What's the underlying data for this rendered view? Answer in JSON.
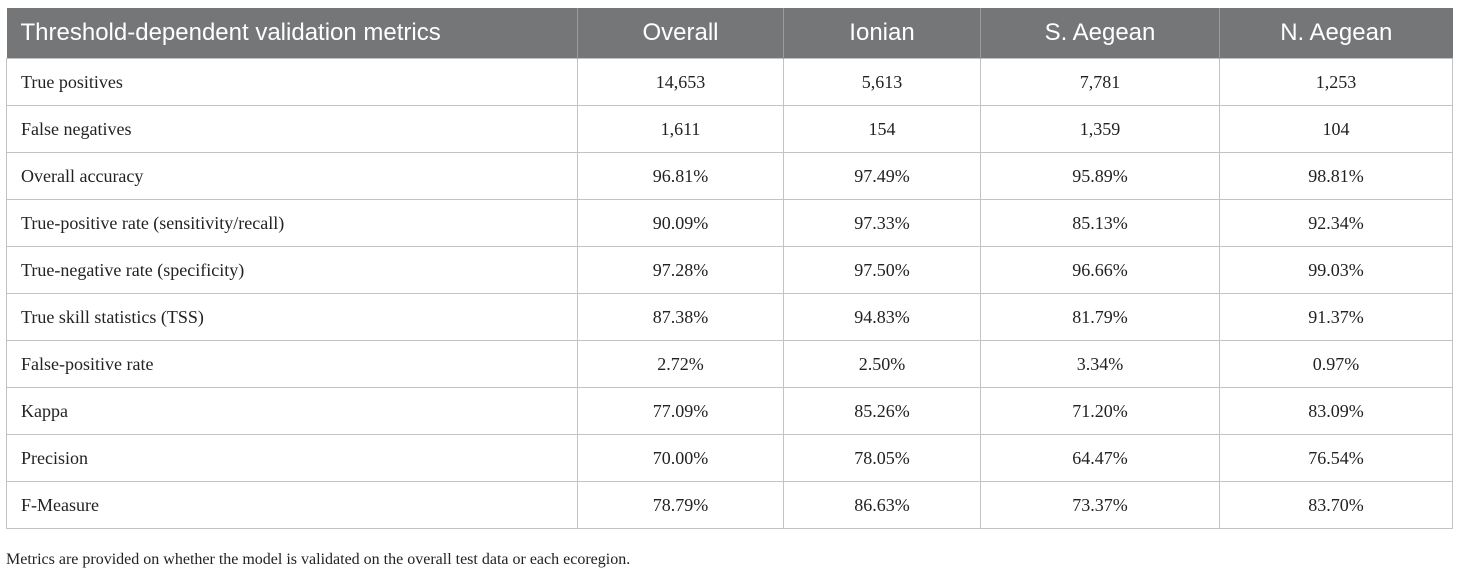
{
  "table": {
    "headers": [
      "Threshold-dependent validation metrics",
      "Overall",
      "Ionian",
      "S. Aegean",
      "N. Aegean"
    ],
    "rows": [
      [
        "True positives",
        "14,653",
        "5,613",
        "7,781",
        "1,253"
      ],
      [
        "False negatives",
        "1,611",
        "154",
        "1,359",
        "104"
      ],
      [
        "Overall accuracy",
        "96.81%",
        "97.49%",
        "95.89%",
        "98.81%"
      ],
      [
        "True-positive rate (sensitivity/recall)",
        "90.09%",
        "97.33%",
        "85.13%",
        "92.34%"
      ],
      [
        "True-negative rate (specificity)",
        "97.28%",
        "97.50%",
        "96.66%",
        "99.03%"
      ],
      [
        "True skill statistics (TSS)",
        "87.38%",
        "94.83%",
        "81.79%",
        "91.37%"
      ],
      [
        "False-positive rate",
        "2.72%",
        "2.50%",
        "3.34%",
        "0.97%"
      ],
      [
        "Kappa",
        "77.09%",
        "85.26%",
        "71.20%",
        "83.09%"
      ],
      [
        "Precision",
        "70.00%",
        "78.05%",
        "64.47%",
        "76.54%"
      ],
      [
        "F-Measure",
        "78.79%",
        "86.63%",
        "73.37%",
        "83.70%"
      ]
    ]
  },
  "footnote": "Metrics are provided on whether the model is validated on the overall test data or each ecoregion.",
  "colors": {
    "header_bg": "#747678",
    "header_text": "#ffffff",
    "border": "#c3c3c3"
  }
}
